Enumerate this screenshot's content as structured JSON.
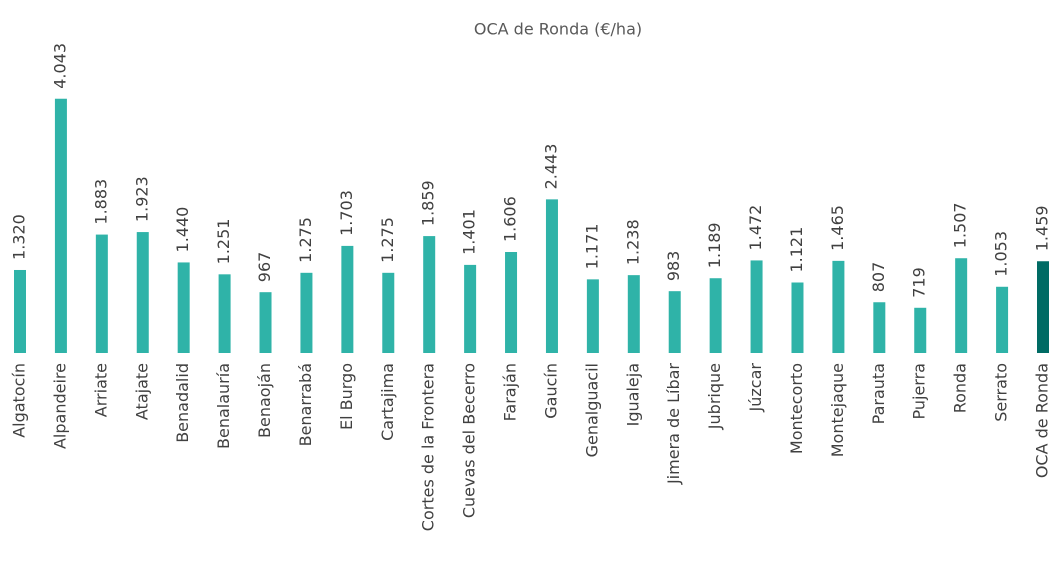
{
  "chart_data": {
    "type": "bar",
    "title": "OCA de Ronda (€/ha)",
    "categories": [
      "Algatocín",
      "Alpandeire",
      "Arriate",
      "Atajate",
      "Benadalid",
      "Benalauría",
      "Benaoján",
      "Benarrabá",
      "El Burgo",
      "Cartajima",
      "Cortes de la Frontera",
      "Cuevas del Becerro",
      "Faraján",
      "Gaucín",
      "Genalguacil",
      "Igualeja",
      "Jimera de Líbar",
      "Jubrique",
      "Júzcar",
      "Montecorto",
      "Montejaque",
      "Parauta",
      "Pujerra",
      "Ronda",
      "Serrato",
      "OCA de Ronda"
    ],
    "values": [
      1320,
      4043,
      1883,
      1923,
      1440,
      1251,
      967,
      1275,
      1703,
      1275,
      1859,
      1401,
      1606,
      2443,
      1171,
      1238,
      983,
      1189,
      1472,
      1121,
      1465,
      807,
      719,
      1507,
      1053,
      1459
    ],
    "value_labels": [
      "1.320",
      "4.043",
      "1.883",
      "1.923",
      "1.440",
      "1.251",
      "967",
      "1.275",
      "1.703",
      "1.275",
      "1.859",
      "1.401",
      "1.606",
      "2.443",
      "1.171",
      "1.238",
      "983",
      "1.189",
      "1.472",
      "1.121",
      "1.465",
      "807",
      "719",
      "1.507",
      "1.053",
      "1.459"
    ],
    "colors": [
      "#2fb3a8",
      "#2fb3a8",
      "#2fb3a8",
      "#2fb3a8",
      "#2fb3a8",
      "#2fb3a8",
      "#2fb3a8",
      "#2fb3a8",
      "#2fb3a8",
      "#2fb3a8",
      "#2fb3a8",
      "#2fb3a8",
      "#2fb3a8",
      "#2fb3a8",
      "#2fb3a8",
      "#2fb3a8",
      "#2fb3a8",
      "#2fb3a8",
      "#2fb3a8",
      "#2fb3a8",
      "#2fb3a8",
      "#2fb3a8",
      "#2fb3a8",
      "#2fb3a8",
      "#2fb3a8",
      "#006b64"
    ],
    "ylim": [
      0,
      4500
    ]
  }
}
